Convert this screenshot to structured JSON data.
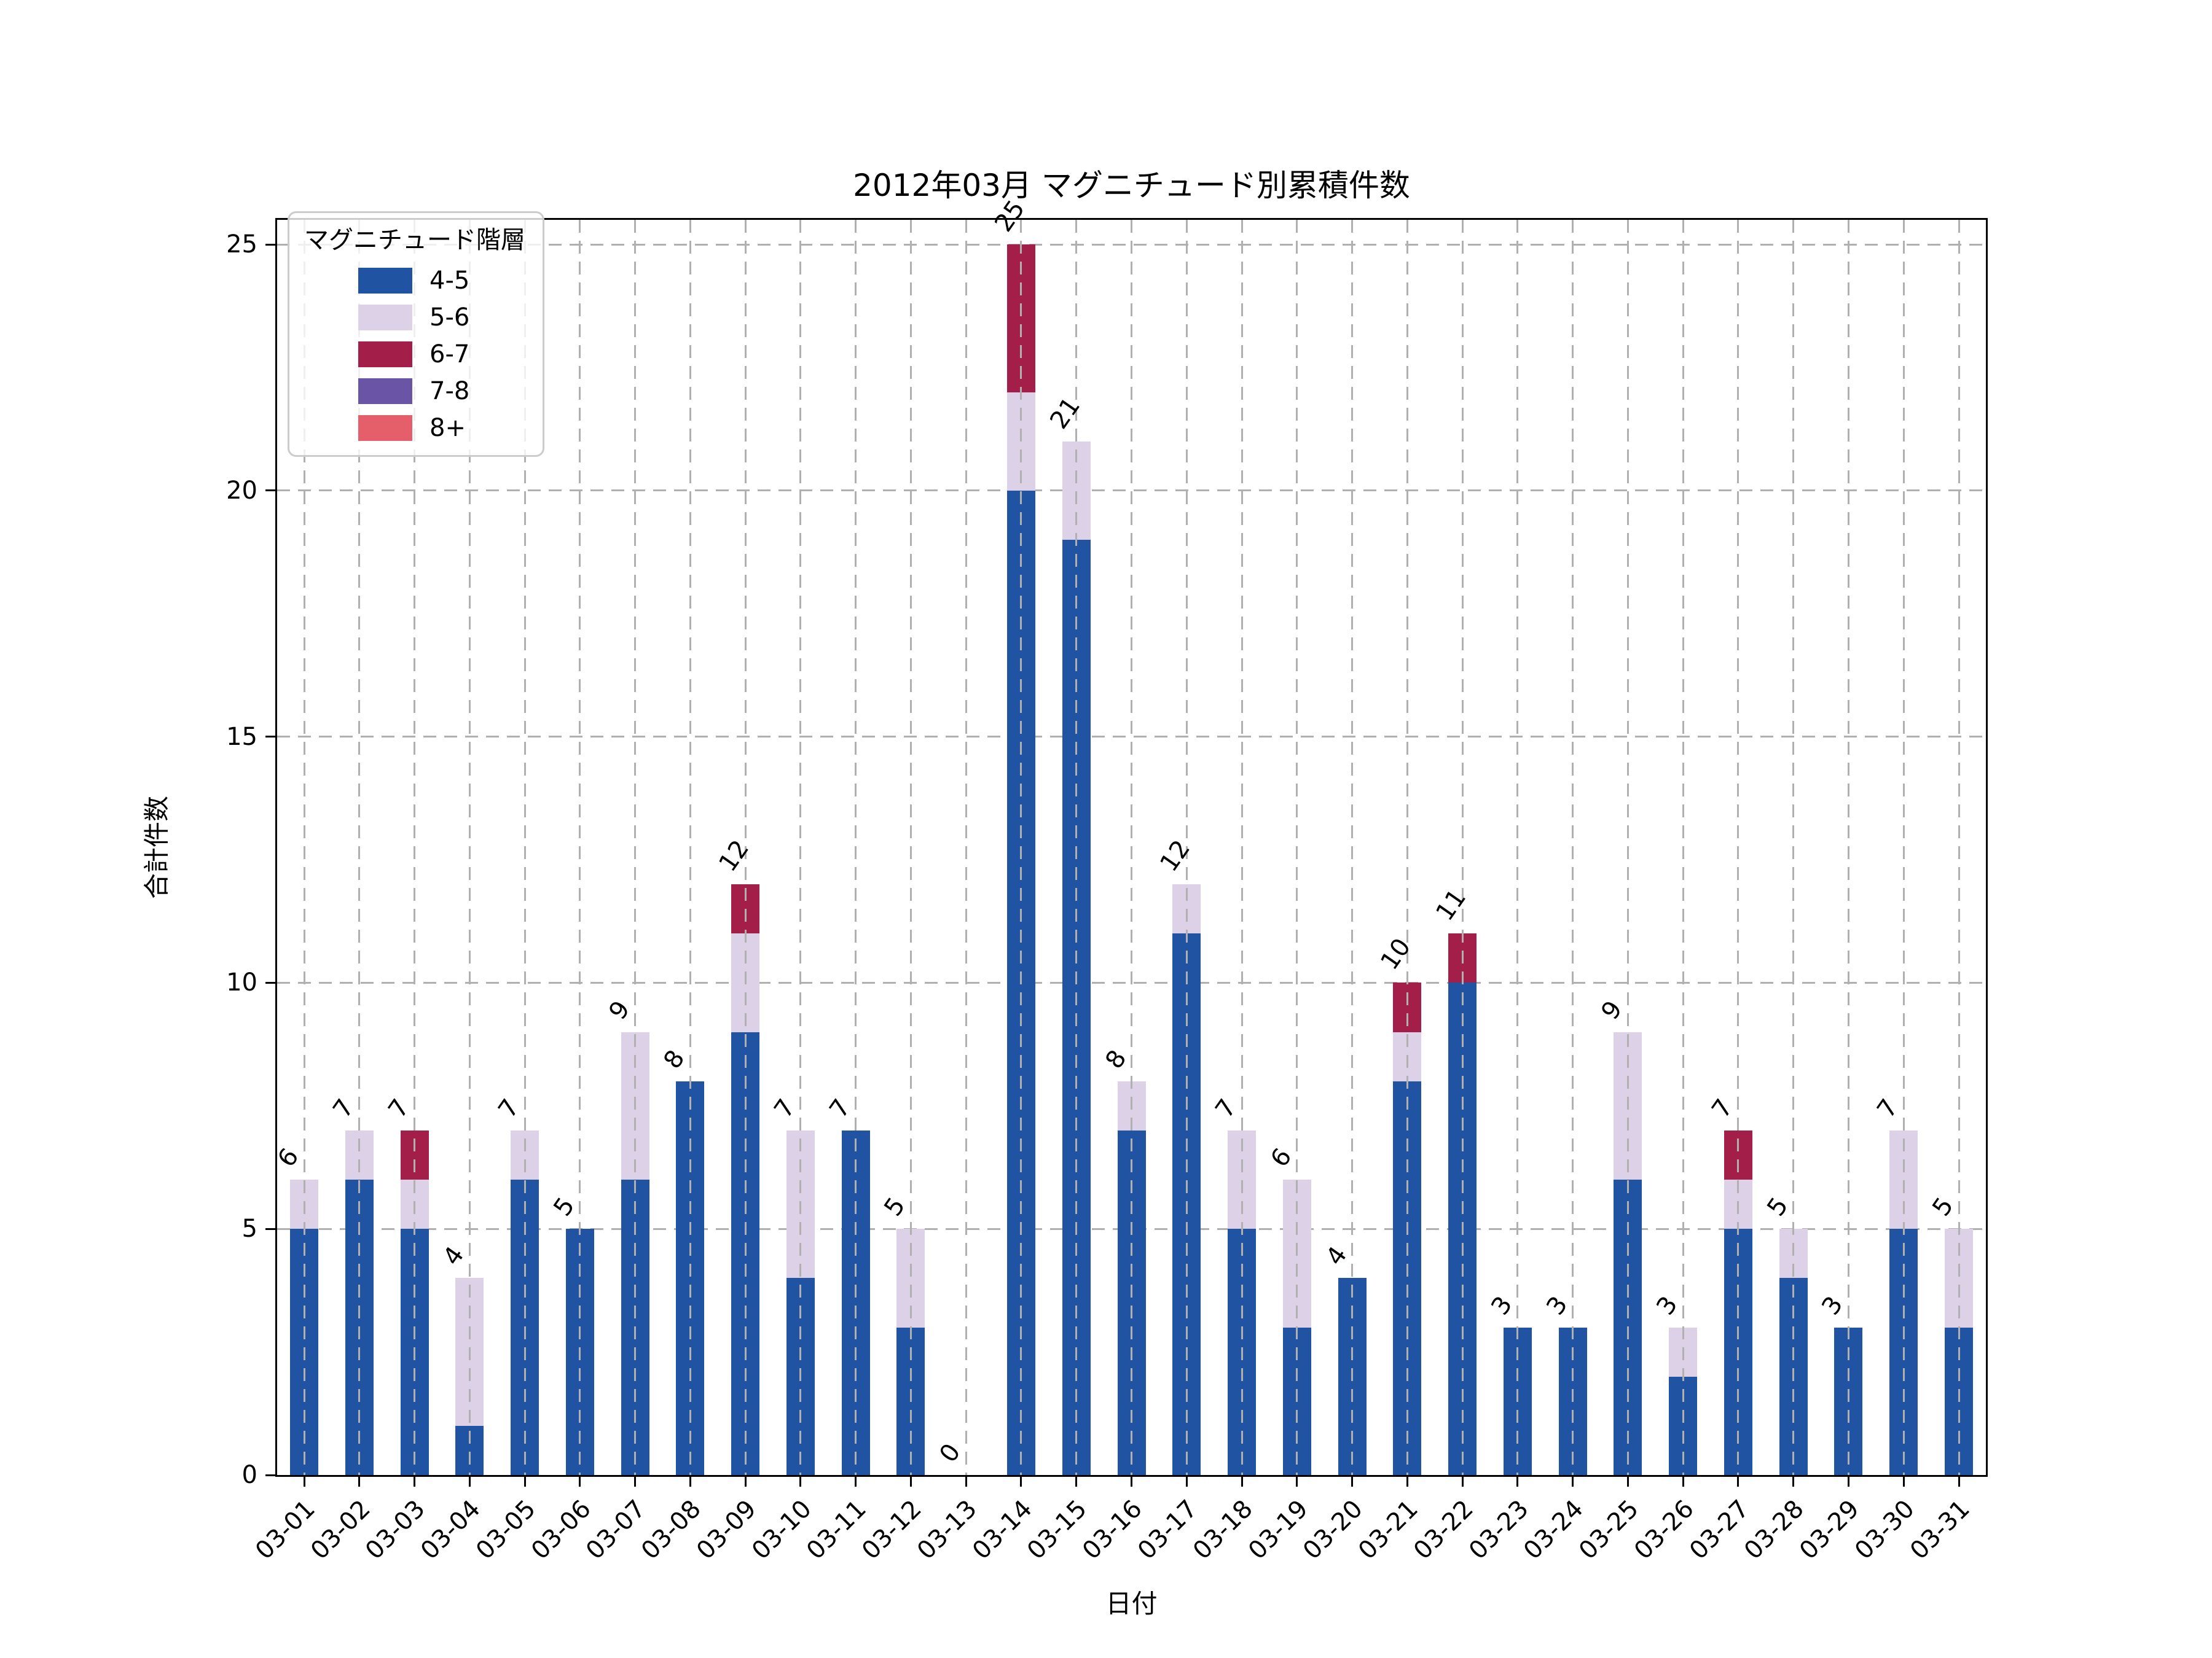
{
  "title": "2012年03月 マグニチュード別累積件数",
  "axes": {
    "xlabel": "日付",
    "ylabel": "合計件数"
  },
  "legend": {
    "title": "マグニチュード階層"
  },
  "chart_data": {
    "type": "bar",
    "stacked": true,
    "title": "2012年03月 マグニチュード別累積件数",
    "xlabel": "日付",
    "ylabel": "合計件数",
    "ylim": [
      0,
      25.5
    ],
    "yticks": [
      0,
      5,
      10,
      15,
      20,
      25
    ],
    "grid": "dashed, horizontal behind bars, vertical in front of bars",
    "legend_position": "upper-left",
    "legend_title": "マグニチュード階層",
    "xtick_rotation_deg": -45,
    "bar_label_rotation_deg": -55,
    "categories": [
      "03-01",
      "03-02",
      "03-03",
      "03-04",
      "03-05",
      "03-06",
      "03-07",
      "03-08",
      "03-09",
      "03-10",
      "03-11",
      "03-12",
      "03-13",
      "03-14",
      "03-15",
      "03-16",
      "03-17",
      "03-18",
      "03-19",
      "03-20",
      "03-21",
      "03-22",
      "03-23",
      "03-24",
      "03-25",
      "03-26",
      "03-27",
      "03-28",
      "03-29",
      "03-30",
      "03-31"
    ],
    "series": [
      {
        "name": "4-5",
        "color": "#2153a3",
        "values": [
          5,
          6,
          5,
          1,
          6,
          5,
          6,
          8,
          9,
          4,
          7,
          3,
          0,
          20,
          19,
          7,
          11,
          5,
          3,
          4,
          8,
          10,
          3,
          3,
          6,
          2,
          5,
          4,
          3,
          5,
          3
        ]
      },
      {
        "name": "5-6",
        "color": "#dcd1e7",
        "values": [
          1,
          1,
          1,
          3,
          1,
          0,
          3,
          0,
          2,
          3,
          0,
          2,
          0,
          2,
          2,
          1,
          1,
          2,
          3,
          0,
          1,
          0,
          0,
          0,
          3,
          1,
          1,
          1,
          0,
          2,
          2
        ]
      },
      {
        "name": "6-7",
        "color": "#a31f4a",
        "values": [
          0,
          0,
          1,
          0,
          0,
          0,
          0,
          0,
          1,
          0,
          0,
          0,
          0,
          3,
          0,
          0,
          0,
          0,
          0,
          0,
          1,
          1,
          0,
          0,
          0,
          0,
          1,
          0,
          0,
          0,
          0
        ]
      },
      {
        "name": "7-8",
        "color": "#6954a5",
        "values": [
          0,
          0,
          0,
          0,
          0,
          0,
          0,
          0,
          0,
          0,
          0,
          0,
          0,
          0,
          0,
          0,
          0,
          0,
          0,
          0,
          0,
          0,
          0,
          0,
          0,
          0,
          0,
          0,
          0,
          0,
          0
        ]
      },
      {
        "name": "8+",
        "color": "#e45f6a",
        "values": [
          0,
          0,
          0,
          0,
          0,
          0,
          0,
          0,
          0,
          0,
          0,
          0,
          0,
          0,
          0,
          0,
          0,
          0,
          0,
          0,
          0,
          0,
          0,
          0,
          0,
          0,
          0,
          0,
          0,
          0,
          0
        ]
      }
    ],
    "totals": [
      6,
      7,
      7,
      4,
      7,
      5,
      9,
      8,
      12,
      7,
      7,
      5,
      0,
      25,
      21,
      8,
      12,
      7,
      6,
      4,
      10,
      11,
      3,
      3,
      9,
      3,
      7,
      5,
      3,
      7,
      5
    ]
  },
  "colors": {
    "grid": "#b0b0b0",
    "axis": "#000000",
    "background": "#ffffff",
    "legend_border": "#cccccc",
    "text": "#000000"
  }
}
